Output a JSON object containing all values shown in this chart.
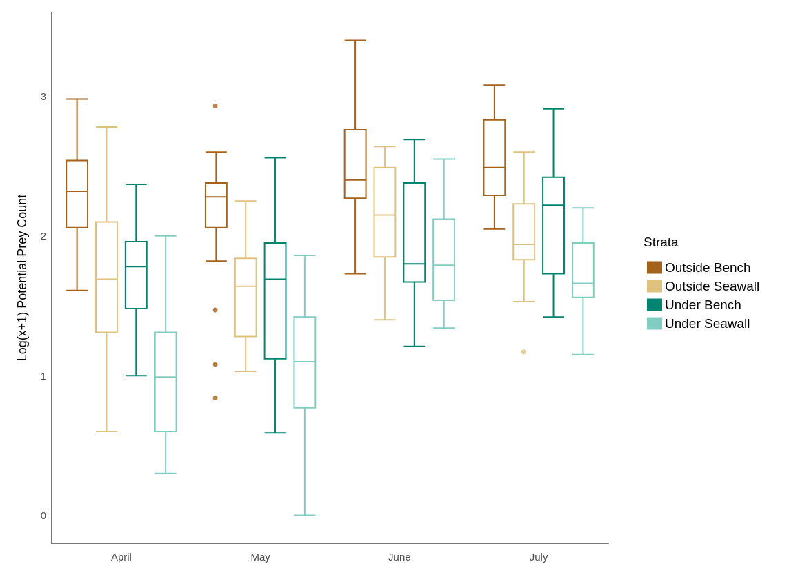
{
  "chart_data": {
    "type": "box",
    "ylabel": "Log(x+1) Potential Prey Count",
    "legend_title": "Strata",
    "legend": "right",
    "grid": false,
    "categories": [
      "April",
      "May",
      "June",
      "July"
    ],
    "ylim": [
      -0.2,
      3.6
    ],
    "yticks": [
      0,
      1,
      2,
      3
    ],
    "series": [
      {
        "name": "Outside Bench",
        "color": "#a6611a",
        "boxes": [
          {
            "low": 1.61,
            "q1": 2.06,
            "median": 2.32,
            "q3": 2.54,
            "high": 2.98
          },
          {
            "low": 1.82,
            "q1": 2.06,
            "median": 2.28,
            "q3": 2.38,
            "high": 2.6,
            "outliers": [
              2.93,
              1.47,
              1.08,
              0.84
            ]
          },
          {
            "low": 1.73,
            "q1": 2.27,
            "median": 2.4,
            "q3": 2.76,
            "high": 3.4
          },
          {
            "low": 2.05,
            "q1": 2.29,
            "median": 2.49,
            "q3": 2.83,
            "high": 3.08
          }
        ]
      },
      {
        "name": "Outside Seawall",
        "color": "#dfc27d",
        "boxes": [
          {
            "low": 0.6,
            "q1": 1.31,
            "median": 1.69,
            "q3": 2.1,
            "high": 2.78
          },
          {
            "low": 1.03,
            "q1": 1.28,
            "median": 1.64,
            "q3": 1.84,
            "high": 2.25
          },
          {
            "low": 1.4,
            "q1": 1.85,
            "median": 2.15,
            "q3": 2.49,
            "high": 2.64
          },
          {
            "low": 1.53,
            "q1": 1.83,
            "median": 1.94,
            "q3": 2.23,
            "high": 2.6,
            "outliers": [
              1.17
            ]
          }
        ]
      },
      {
        "name": "Under Bench",
        "color": "#018571",
        "boxes": [
          {
            "low": 1.0,
            "q1": 1.48,
            "median": 1.78,
            "q3": 1.96,
            "high": 2.37
          },
          {
            "low": 0.59,
            "q1": 1.12,
            "median": 1.69,
            "q3": 1.95,
            "high": 2.56
          },
          {
            "low": 1.21,
            "q1": 1.67,
            "median": 1.8,
            "q3": 2.38,
            "high": 2.69
          },
          {
            "low": 1.42,
            "q1": 1.73,
            "median": 2.22,
            "q3": 2.42,
            "high": 2.91
          }
        ]
      },
      {
        "name": "Under Seawall",
        "color": "#80cdc1",
        "boxes": [
          {
            "low": 0.3,
            "q1": 0.6,
            "median": 0.99,
            "q3": 1.31,
            "high": 2.0
          },
          {
            "low": 0,
            "q1": 0.77,
            "median": 1.1,
            "q3": 1.42,
            "high": 1.86
          },
          {
            "low": 1.34,
            "q1": 1.54,
            "median": 1.79,
            "q3": 2.12,
            "high": 2.55
          },
          {
            "low": 1.15,
            "q1": 1.56,
            "median": 1.66,
            "q3": 1.95,
            "high": 2.2
          }
        ]
      }
    ]
  }
}
